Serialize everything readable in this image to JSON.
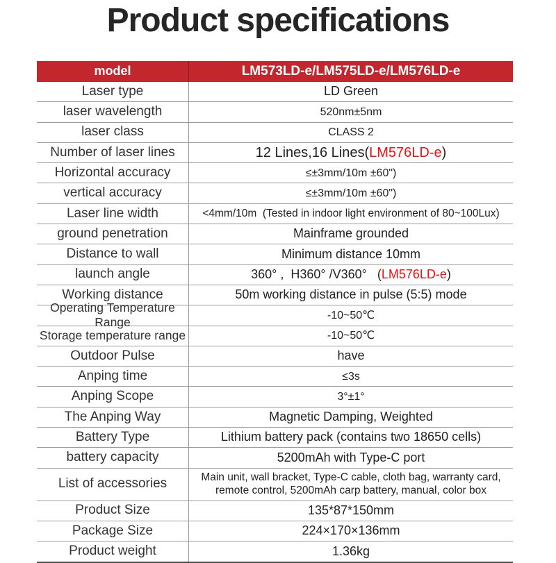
{
  "page": {
    "title": "Product specifications"
  },
  "colors": {
    "header_red": "#c2272d",
    "accent_red": "#f40f0f",
    "line_gray": "#9b9b9b",
    "bottom_line": "#4d4d4d"
  },
  "table": {
    "header": {
      "label": "model",
      "value": "LM573LD-e/LM575LD-e/LM576LD-e"
    },
    "rows": [
      {
        "label": "Laser type",
        "value": "LD Green"
      },
      {
        "label": "laser wavelength",
        "value": "520nm±5nm"
      },
      {
        "label": "laser class",
        "value": "CLASS 2"
      },
      {
        "label": "Number of laser lines",
        "value_pre": "12 Lines,16 Lines(",
        "value_red": "LM576LD-e",
        "value_post": ")"
      },
      {
        "label": "Horizontal accuracy",
        "value": "≤±3mm/10m ±60\")"
      },
      {
        "label": "vertical accuracy",
        "value": "≤±3mm/10m ±60\")"
      },
      {
        "label": "Laser line width",
        "value": "<4mm/10m  (Tested in indoor light environment of 80~100Lux)"
      },
      {
        "label": "ground penetration",
        "value": "Mainframe grounded"
      },
      {
        "label": "Distance to wall",
        "value": "Minimum distance 10mm"
      },
      {
        "label": "launch angle",
        "value_pre": "360° ,  H360° /V360°   (",
        "value_red": "LM576LD-e",
        "value_post": ")"
      },
      {
        "label": "Working distance",
        "value": "50m working distance in pulse (5:5) mode"
      },
      {
        "label": "Operating Temperature Range",
        "value": "-10~50℃"
      },
      {
        "label": "Storage temperature range",
        "value": "-10~50℃"
      },
      {
        "label": "Outdoor Pulse",
        "value": "have"
      },
      {
        "label": "Anping time",
        "value": "≤3s"
      },
      {
        "label": "Anping Scope",
        "value": "3°±1°"
      },
      {
        "label": "The Anping Way",
        "value": "Magnetic Damping, Weighted"
      },
      {
        "label": "Battery Type",
        "value": "Lithium battery pack (contains two 18650 cells)"
      },
      {
        "label": "battery capacity",
        "value": "5200mAh with Type-C port"
      },
      {
        "label": "List of accessories",
        "value": "Main unit, wall bracket, Type-C cable, cloth bag, warranty card, remote control, 5200mAh carp battery, manual, color box"
      },
      {
        "label": "Product Size",
        "value": "135*87*150mm"
      },
      {
        "label": "Package Size",
        "value": "224×170×136mm"
      },
      {
        "label": "Product weight",
        "value": "1.36kg"
      }
    ]
  }
}
